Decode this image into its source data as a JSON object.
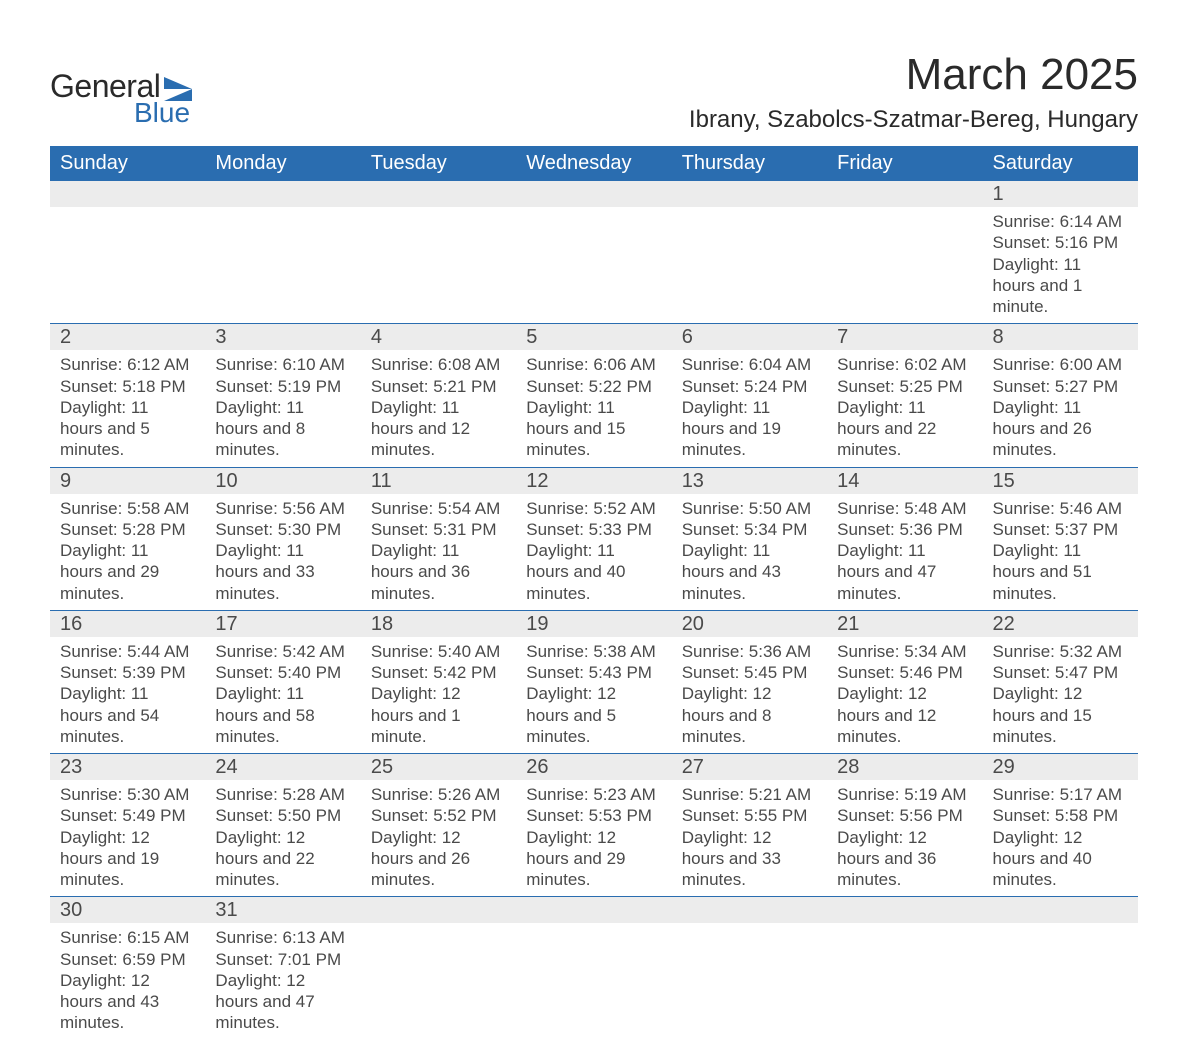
{
  "logo": {
    "text1": "General",
    "text2": "Blue"
  },
  "title": "March 2025",
  "location": "Ibrany, Szabolcs-Szatmar-Bereg, Hungary",
  "colors": {
    "header_bg": "#2a6db0",
    "header_text": "#ffffff",
    "daynum_bg": "#ececec",
    "body_text": "#4a4a4a",
    "border": "#2a6db0",
    "page_bg": "#ffffff",
    "logo_accent": "#2a6db0"
  },
  "typography": {
    "title_fontsize": 44,
    "location_fontsize": 24,
    "header_fontsize": 20,
    "daynum_fontsize": 20,
    "body_fontsize": 17
  },
  "weekdays": [
    "Sunday",
    "Monday",
    "Tuesday",
    "Wednesday",
    "Thursday",
    "Friday",
    "Saturday"
  ],
  "weeks": [
    [
      null,
      null,
      null,
      null,
      null,
      null,
      {
        "day": "1",
        "sunrise": "Sunrise: 6:14 AM",
        "sunset": "Sunset: 5:16 PM",
        "daylight": "Daylight: 11 hours and 1 minute."
      }
    ],
    [
      {
        "day": "2",
        "sunrise": "Sunrise: 6:12 AM",
        "sunset": "Sunset: 5:18 PM",
        "daylight": "Daylight: 11 hours and 5 minutes."
      },
      {
        "day": "3",
        "sunrise": "Sunrise: 6:10 AM",
        "sunset": "Sunset: 5:19 PM",
        "daylight": "Daylight: 11 hours and 8 minutes."
      },
      {
        "day": "4",
        "sunrise": "Sunrise: 6:08 AM",
        "sunset": "Sunset: 5:21 PM",
        "daylight": "Daylight: 11 hours and 12 minutes."
      },
      {
        "day": "5",
        "sunrise": "Sunrise: 6:06 AM",
        "sunset": "Sunset: 5:22 PM",
        "daylight": "Daylight: 11 hours and 15 minutes."
      },
      {
        "day": "6",
        "sunrise": "Sunrise: 6:04 AM",
        "sunset": "Sunset: 5:24 PM",
        "daylight": "Daylight: 11 hours and 19 minutes."
      },
      {
        "day": "7",
        "sunrise": "Sunrise: 6:02 AM",
        "sunset": "Sunset: 5:25 PM",
        "daylight": "Daylight: 11 hours and 22 minutes."
      },
      {
        "day": "8",
        "sunrise": "Sunrise: 6:00 AM",
        "sunset": "Sunset: 5:27 PM",
        "daylight": "Daylight: 11 hours and 26 minutes."
      }
    ],
    [
      {
        "day": "9",
        "sunrise": "Sunrise: 5:58 AM",
        "sunset": "Sunset: 5:28 PM",
        "daylight": "Daylight: 11 hours and 29 minutes."
      },
      {
        "day": "10",
        "sunrise": "Sunrise: 5:56 AM",
        "sunset": "Sunset: 5:30 PM",
        "daylight": "Daylight: 11 hours and 33 minutes."
      },
      {
        "day": "11",
        "sunrise": "Sunrise: 5:54 AM",
        "sunset": "Sunset: 5:31 PM",
        "daylight": "Daylight: 11 hours and 36 minutes."
      },
      {
        "day": "12",
        "sunrise": "Sunrise: 5:52 AM",
        "sunset": "Sunset: 5:33 PM",
        "daylight": "Daylight: 11 hours and 40 minutes."
      },
      {
        "day": "13",
        "sunrise": "Sunrise: 5:50 AM",
        "sunset": "Sunset: 5:34 PM",
        "daylight": "Daylight: 11 hours and 43 minutes."
      },
      {
        "day": "14",
        "sunrise": "Sunrise: 5:48 AM",
        "sunset": "Sunset: 5:36 PM",
        "daylight": "Daylight: 11 hours and 47 minutes."
      },
      {
        "day": "15",
        "sunrise": "Sunrise: 5:46 AM",
        "sunset": "Sunset: 5:37 PM",
        "daylight": "Daylight: 11 hours and 51 minutes."
      }
    ],
    [
      {
        "day": "16",
        "sunrise": "Sunrise: 5:44 AM",
        "sunset": "Sunset: 5:39 PM",
        "daylight": "Daylight: 11 hours and 54 minutes."
      },
      {
        "day": "17",
        "sunrise": "Sunrise: 5:42 AM",
        "sunset": "Sunset: 5:40 PM",
        "daylight": "Daylight: 11 hours and 58 minutes."
      },
      {
        "day": "18",
        "sunrise": "Sunrise: 5:40 AM",
        "sunset": "Sunset: 5:42 PM",
        "daylight": "Daylight: 12 hours and 1 minute."
      },
      {
        "day": "19",
        "sunrise": "Sunrise: 5:38 AM",
        "sunset": "Sunset: 5:43 PM",
        "daylight": "Daylight: 12 hours and 5 minutes."
      },
      {
        "day": "20",
        "sunrise": "Sunrise: 5:36 AM",
        "sunset": "Sunset: 5:45 PM",
        "daylight": "Daylight: 12 hours and 8 minutes."
      },
      {
        "day": "21",
        "sunrise": "Sunrise: 5:34 AM",
        "sunset": "Sunset: 5:46 PM",
        "daylight": "Daylight: 12 hours and 12 minutes."
      },
      {
        "day": "22",
        "sunrise": "Sunrise: 5:32 AM",
        "sunset": "Sunset: 5:47 PM",
        "daylight": "Daylight: 12 hours and 15 minutes."
      }
    ],
    [
      {
        "day": "23",
        "sunrise": "Sunrise: 5:30 AM",
        "sunset": "Sunset: 5:49 PM",
        "daylight": "Daylight: 12 hours and 19 minutes."
      },
      {
        "day": "24",
        "sunrise": "Sunrise: 5:28 AM",
        "sunset": "Sunset: 5:50 PM",
        "daylight": "Daylight: 12 hours and 22 minutes."
      },
      {
        "day": "25",
        "sunrise": "Sunrise: 5:26 AM",
        "sunset": "Sunset: 5:52 PM",
        "daylight": "Daylight: 12 hours and 26 minutes."
      },
      {
        "day": "26",
        "sunrise": "Sunrise: 5:23 AM",
        "sunset": "Sunset: 5:53 PM",
        "daylight": "Daylight: 12 hours and 29 minutes."
      },
      {
        "day": "27",
        "sunrise": "Sunrise: 5:21 AM",
        "sunset": "Sunset: 5:55 PM",
        "daylight": "Daylight: 12 hours and 33 minutes."
      },
      {
        "day": "28",
        "sunrise": "Sunrise: 5:19 AM",
        "sunset": "Sunset: 5:56 PM",
        "daylight": "Daylight: 12 hours and 36 minutes."
      },
      {
        "day": "29",
        "sunrise": "Sunrise: 5:17 AM",
        "sunset": "Sunset: 5:58 PM",
        "daylight": "Daylight: 12 hours and 40 minutes."
      }
    ],
    [
      {
        "day": "30",
        "sunrise": "Sunrise: 6:15 AM",
        "sunset": "Sunset: 6:59 PM",
        "daylight": "Daylight: 12 hours and 43 minutes."
      },
      {
        "day": "31",
        "sunrise": "Sunrise: 6:13 AM",
        "sunset": "Sunset: 7:01 PM",
        "daylight": "Daylight: 12 hours and 47 minutes."
      },
      null,
      null,
      null,
      null,
      null
    ]
  ]
}
